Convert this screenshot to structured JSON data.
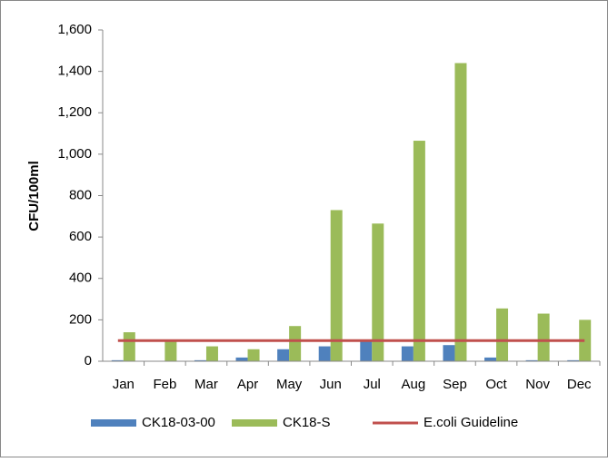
{
  "chart_data": {
    "type": "bar",
    "y_label": "CFU/100ml",
    "categories": [
      "Jan",
      "Feb",
      "Mar",
      "Apr",
      "May",
      "Jun",
      "Jul",
      "Aug",
      "Sep",
      "Oct",
      "Nov",
      "Dec"
    ],
    "series": [
      {
        "name": "CK18-03-00",
        "type": "bar",
        "color": "#4f81bd",
        "values": [
          5,
          2,
          5,
          18,
          58,
          72,
          95,
          72,
          78,
          18,
          5,
          5
        ]
      },
      {
        "name": "CK18-S",
        "type": "bar",
        "color": "#9bbb59",
        "values": [
          140,
          100,
          72,
          58,
          170,
          730,
          665,
          1065,
          1440,
          255,
          230,
          200
        ]
      },
      {
        "name": "E.coli Guideline",
        "type": "line",
        "color": "#c0504d",
        "values": [
          100,
          100,
          100,
          100,
          100,
          100,
          100,
          100,
          100,
          100,
          100,
          100
        ]
      }
    ],
    "ylim": [
      0,
      1600
    ],
    "yticks": [
      0,
      200,
      400,
      600,
      800,
      {
        "value": 1000,
        "label": "1,000"
      },
      {
        "value": 1200,
        "label": "1,200"
      },
      {
        "value": 1400,
        "label": "1,400"
      },
      {
        "value": 1600,
        "label": "1,600"
      }
    ],
    "legend": "bottom"
  }
}
